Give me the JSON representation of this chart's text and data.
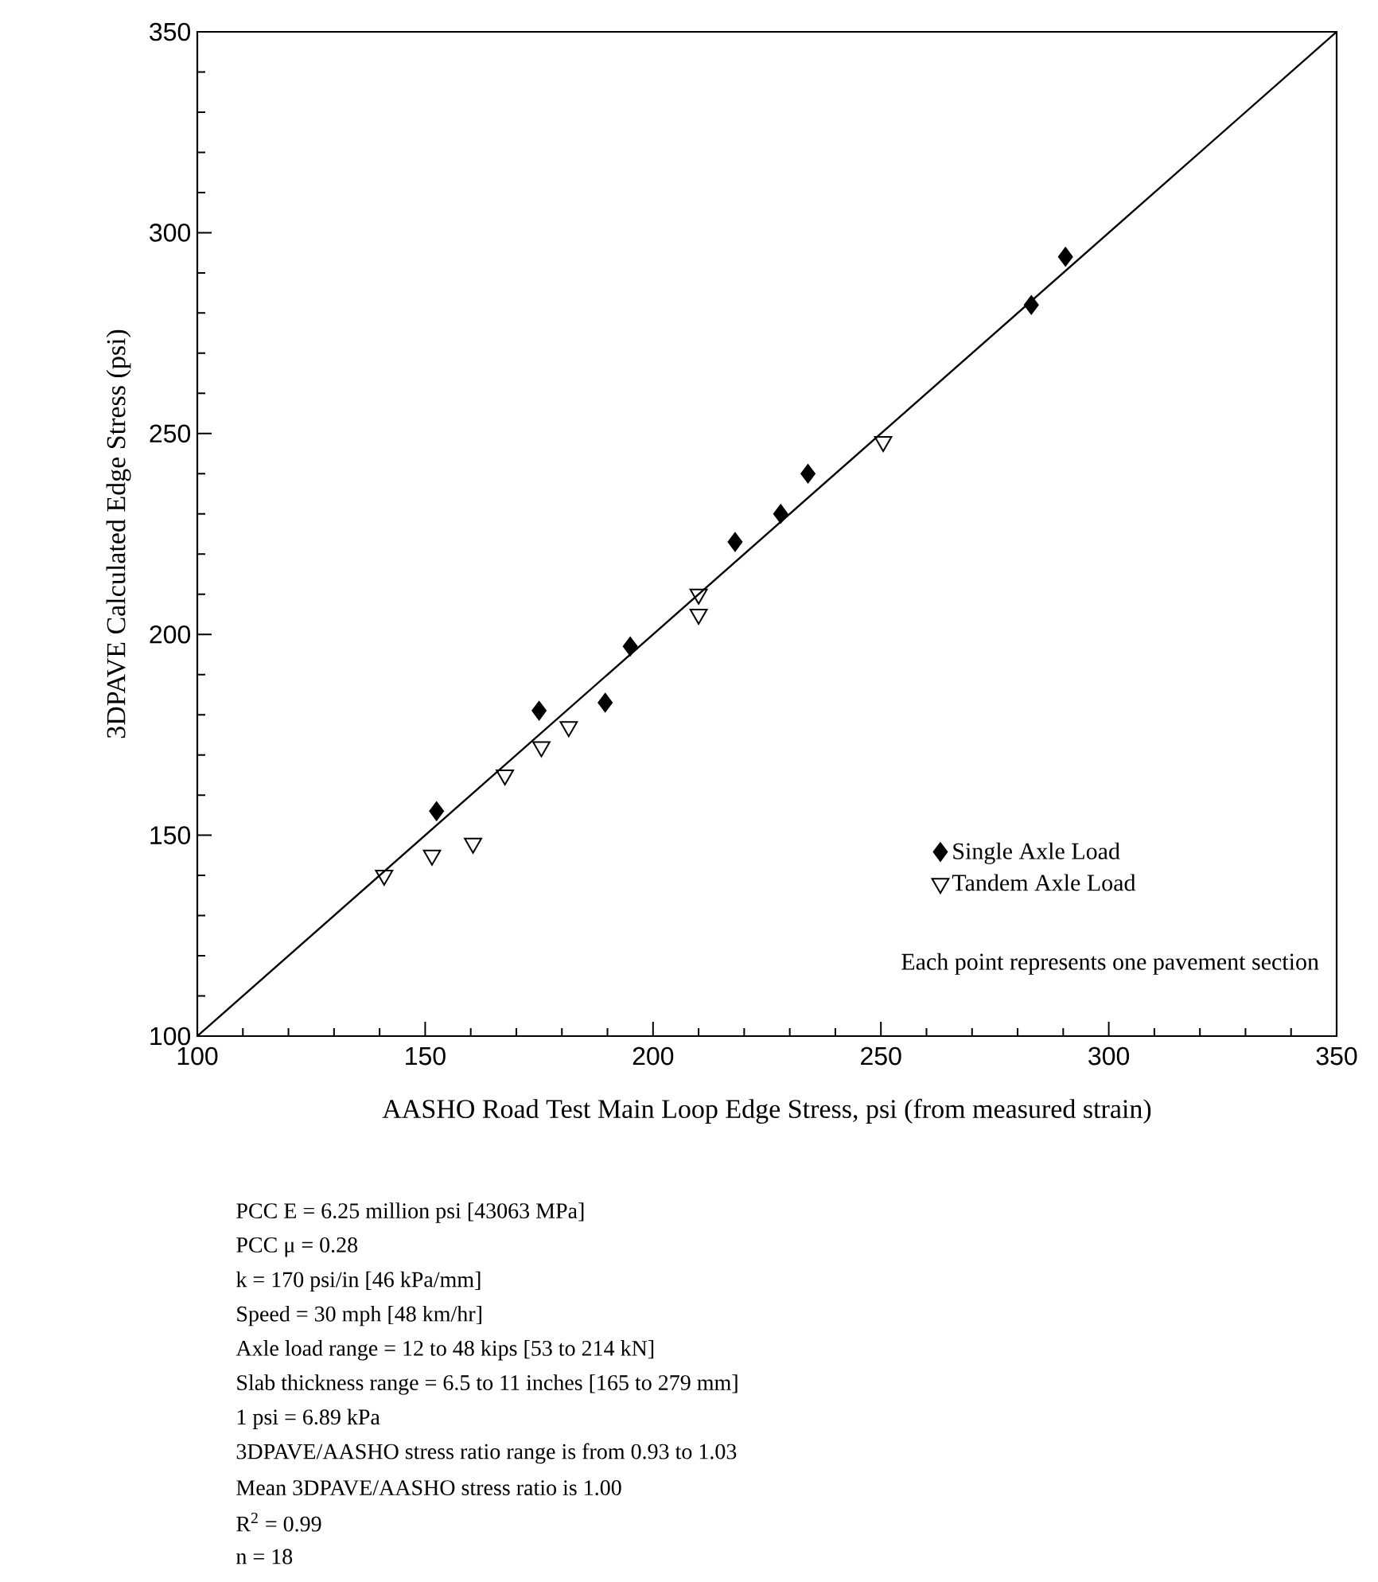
{
  "chart_data": {
    "type": "scatter",
    "xlabel": "AASHO Road Test Main Loop Edge Stress, psi (from measured strain)",
    "ylabel": "3DPAVE Calculated Edge Stress (psi)",
    "xlim": [
      100,
      350
    ],
    "ylim": [
      100,
      350
    ],
    "xticks": [
      100,
      {
        "value": 110,
        "label": null
      },
      {
        "value": 120,
        "label": null
      },
      {
        "value": 130,
        "label": null
      },
      {
        "value": 140,
        "label": null
      },
      150,
      {
        "value": 160,
        "label": null
      },
      {
        "value": 170,
        "label": null
      },
      {
        "value": 180,
        "label": null
      },
      {
        "value": 190,
        "label": null
      },
      200,
      {
        "value": 210,
        "label": null
      },
      {
        "value": 220,
        "label": null
      },
      {
        "value": 230,
        "label": null
      },
      {
        "value": 240,
        "label": null
      },
      250,
      {
        "value": 260,
        "label": null
      },
      {
        "value": 270,
        "label": null
      },
      {
        "value": 280,
        "label": null
      },
      {
        "value": 290,
        "label": null
      },
      300,
      {
        "value": 310,
        "label": null
      },
      {
        "value": 320,
        "label": null
      },
      {
        "value": 330,
        "label": null
      },
      {
        "value": 340,
        "label": null
      },
      350
    ],
    "yticks": [
      100,
      {
        "value": 110,
        "label": null
      },
      {
        "value": 120,
        "label": null
      },
      {
        "value": 130,
        "label": null
      },
      {
        "value": 140,
        "label": null
      },
      150,
      {
        "value": 160,
        "label": null
      },
      {
        "value": 170,
        "label": null
      },
      {
        "value": 180,
        "label": null
      },
      {
        "value": 190,
        "label": null
      },
      200,
      {
        "value": 210,
        "label": null
      },
      {
        "value": 220,
        "label": null
      },
      {
        "value": 230,
        "label": null
      },
      {
        "value": 240,
        "label": null
      },
      250,
      {
        "value": 260,
        "label": null
      },
      {
        "value": 270,
        "label": null
      },
      {
        "value": 280,
        "label": null
      },
      {
        "value": 290,
        "label": null
      },
      300,
      {
        "value": 310,
        "label": null
      },
      {
        "value": 320,
        "label": null
      },
      {
        "value": 330,
        "label": null
      },
      {
        "value": 340,
        "label": null
      },
      350
    ],
    "grid": false,
    "legend": "bottom right",
    "series": [
      {
        "name": "Single Axle Load",
        "color": "#000000",
        "marker": "diamond",
        "x": [
          152.5,
          175,
          189.5,
          195,
          218,
          228,
          234,
          283,
          290.5
        ],
        "values": [
          156,
          181,
          183,
          197,
          223,
          230,
          240,
          282,
          294
        ]
      },
      {
        "name": "Tandem Axle Load",
        "color": "#000000",
        "marker": "triangle",
        "x": [
          141,
          151.5,
          160.5,
          167.5,
          175.5,
          181.5,
          210,
          210,
          250.5
        ],
        "values": [
          140,
          145,
          148,
          165,
          172,
          177,
          210,
          205,
          248
        ]
      },
      {
        "type": "line",
        "color": "#000000",
        "marker": "none",
        "x": [
          100,
          350
        ],
        "values": [
          100,
          350
        ]
      }
    ],
    "annotations": [
      "Each point represents one pavement section",
      "PCC E = 6.25 million psi [43063 MPa]",
      "PCC μ = 0.28",
      "k = 170 psi/in [46 kPa/mm]",
      "Speed = 30 mph [48 km/hr]",
      "Axle load range = 12 to 48 kips [53 to 214 kN]",
      "Slab thickness range = 6.5 to 11 inches [165 to 279 mm]",
      "1 psi = 6.89 kPa",
      "3DPAVE/AASHO stress ratio range is from 0.93 to 1.03",
      "Mean 3DPAVE/AASHO stress ratio is 1.00",
      "R$^{2}$ = 0.99",
      "n = 18"
    ]
  }
}
